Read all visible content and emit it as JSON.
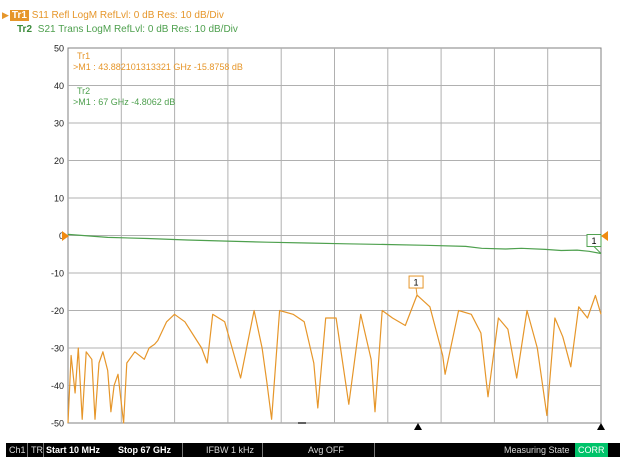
{
  "header": {
    "trace1": {
      "tag": "Tr1",
      "text": "S11 Refl LogM RefLvl: 0  dB Res: 10  dB/Div"
    },
    "trace2": {
      "tag": "Tr2",
      "text": "S21 Trans LogM RefLvl: 0  dB Res: 10  dB/Div"
    }
  },
  "markers": {
    "tr1": {
      "label": "Tr1",
      "readout": ">M1 :  43.882101313321  GHz  -15.8758  dB"
    },
    "tr2": {
      "label": "Tr2",
      "readout": ">M1 :  67  GHz  -4.8062  dB"
    },
    "flag": "1"
  },
  "statusbar": {
    "channel": "Ch1",
    "tr": "TR",
    "start": "Start 10 MHz",
    "stop": "Stop 67 GHz",
    "ifbw": "IFBW 1 kHz",
    "avg": "Avg OFF",
    "state": "Measuring State",
    "corr": "CORR"
  },
  "colors": {
    "tr1": "#e6962a",
    "tr2": "#4ea04e",
    "grid": "#b0b0b0",
    "corr": "#00c36a"
  },
  "chart_data": {
    "type": "line",
    "ytick_labels": [
      "50",
      "40",
      "30",
      "20",
      "10",
      "0",
      "-10",
      "-20",
      "-30",
      "-40",
      "-50"
    ],
    "ylim": [
      -50,
      50
    ],
    "xlim": [
      0.01,
      67
    ],
    "x_unit": "GHz",
    "reference_level": 0,
    "grid": true,
    "series": [
      {
        "name": "Tr1",
        "x": [
          0.01,
          0.4,
          0.9,
          1.3,
          1.8,
          2.3,
          3.0,
          3.4,
          3.9,
          4.4,
          5.0,
          5.4,
          5.8,
          6.3,
          7.0,
          7.4,
          8.4,
          9.6,
          10.2,
          10.9,
          11.3,
          12.4,
          13.4,
          14.7,
          16.2,
          16.8,
          17.5,
          18.2,
          19.7,
          21.7,
          23.4,
          24.4,
          25.0,
          25.6,
          26.6,
          28.3,
          29.7,
          30.9,
          31.4,
          32.4,
          33.7,
          35.3,
          36.8,
          38.1,
          38.6,
          39.5,
          40.8,
          42.4,
          43.88,
          45.5,
          47.1,
          47.4,
          49.1,
          50.7,
          51.9,
          52.8,
          54.1,
          55.3,
          56.4,
          57.7,
          59.0,
          60.2,
          61.2,
          62.2,
          63.2,
          64.2,
          65.3,
          66.3,
          67.0
        ],
        "values": [
          -50,
          -32,
          -42,
          -30,
          -49,
          -31,
          -33,
          -49,
          -34,
          -31,
          -36,
          -47,
          -40,
          -37,
          -50,
          -34,
          -31,
          -33,
          -30,
          -29,
          -28,
          -23,
          -21,
          -23,
          -28,
          -30,
          -34,
          -21,
          -23,
          -38,
          -20,
          -30,
          -39,
          -49,
          -20,
          -21,
          -23,
          -34,
          -46,
          -22,
          -22,
          -45,
          -21,
          -33,
          -47,
          -20,
          -22,
          -24,
          -15.9,
          -19,
          -32,
          -37,
          -20,
          -21,
          -26,
          -43,
          -22,
          -25,
          -38,
          -20,
          -30,
          -48,
          -22,
          -27,
          -35,
          -19,
          -22,
          -16,
          -21
        ]
      },
      {
        "name": "Tr2",
        "x": [
          0.01,
          5,
          10,
          15,
          20,
          25,
          30,
          35,
          40,
          45,
          50,
          52,
          55,
          57,
          60,
          62,
          64,
          65.5,
          67
        ],
        "values": [
          0.3,
          -0.5,
          -0.8,
          -1.2,
          -1.5,
          -1.8,
          -2.0,
          -2.2,
          -2.4,
          -2.6,
          -2.9,
          -3.4,
          -3.6,
          -3.4,
          -3.7,
          -4.0,
          -3.9,
          -4.2,
          -4.8
        ]
      }
    ],
    "marker_points": [
      {
        "trace": "Tr1",
        "label": "1",
        "x": 43.882,
        "y": -15.8758
      },
      {
        "trace": "Tr2",
        "label": "1",
        "x": 67,
        "y": -4.8062
      }
    ]
  }
}
